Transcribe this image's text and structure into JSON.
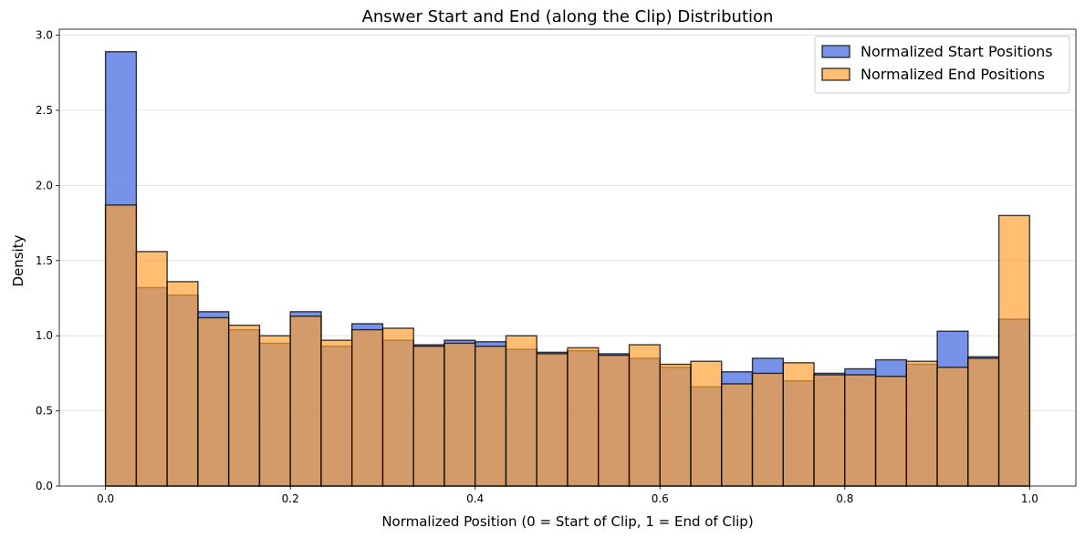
{
  "chart_data": {
    "type": "bar",
    "title": "Answer Start and End (along the Clip) Distribution",
    "xlabel": "Normalized Position (0 = Start of Clip, 1 = End of Clip)",
    "ylabel": "Density",
    "xlim": [
      -0.05,
      1.05
    ],
    "ylim": [
      0,
      3.04
    ],
    "xticks": [
      "0.0",
      "0.2",
      "0.4",
      "0.6",
      "0.8",
      "1.0"
    ],
    "yticks": [
      "0.0",
      "0.5",
      "1.0",
      "1.5",
      "2.0",
      "2.5",
      "3.0"
    ],
    "grid": "y",
    "legend_position": "top-right",
    "bins": 30,
    "bin_range": [
      0,
      1
    ],
    "series": [
      {
        "name": "Normalized Start Positions",
        "color": "#4169e1",
        "values": [
          2.89,
          1.32,
          1.27,
          1.16,
          1.04,
          0.95,
          1.16,
          0.93,
          1.08,
          0.97,
          0.94,
          0.97,
          0.96,
          0.91,
          0.89,
          0.9,
          0.88,
          0.85,
          0.79,
          0.66,
          0.76,
          0.85,
          0.7,
          0.75,
          0.78,
          0.84,
          0.81,
          1.03,
          0.86,
          1.11
        ]
      },
      {
        "name": "Normalized End Positions",
        "color": "#ff9f2d",
        "values": [
          1.87,
          1.56,
          1.36,
          1.12,
          1.07,
          1.0,
          1.13,
          0.97,
          1.04,
          1.05,
          0.93,
          0.95,
          0.93,
          1.0,
          0.88,
          0.92,
          0.87,
          0.94,
          0.81,
          0.83,
          0.68,
          0.75,
          0.82,
          0.74,
          0.74,
          0.73,
          0.83,
          0.79,
          0.85,
          1.8
        ]
      }
    ]
  }
}
